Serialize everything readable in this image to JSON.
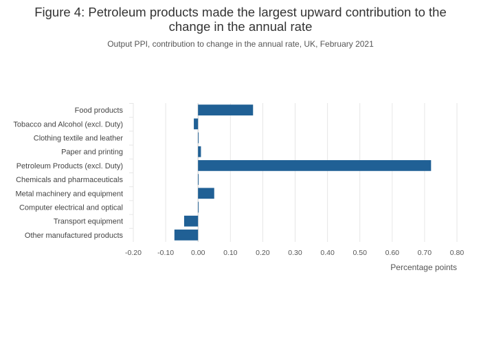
{
  "chart_data": {
    "type": "bar",
    "orientation": "horizontal",
    "title": "Figure 4: Petroleum products made the largest upward contribution to the change in the annual rate",
    "subtitle": "Output PPI, contribution to change in the annual rate, UK, February 2021",
    "xlabel": "Percentage points",
    "ylabel": "",
    "xlim": [
      -0.2,
      0.8
    ],
    "xticks": [
      "-0.20",
      "-0.10",
      "0.00",
      "0.10",
      "0.20",
      "0.30",
      "0.40",
      "0.50",
      "0.60",
      "0.70",
      "0.80"
    ],
    "grid": true,
    "bar_color": "#206095",
    "categories": [
      "Food products",
      "Tobacco and Alcohol (excl. Duty)",
      "Clothing textile and leather",
      "Paper and printing",
      "Petroleum Products (excl. Duty)",
      "Chemicals and pharmaceuticals",
      "Metal machinery and equipment",
      "Computer electrical and optical",
      "Transport equipment",
      "Other manufactured products"
    ],
    "values": [
      0.17,
      -0.013,
      0.002,
      0.009,
      0.72,
      0.002,
      0.05,
      0.002,
      -0.043,
      -0.073
    ]
  }
}
